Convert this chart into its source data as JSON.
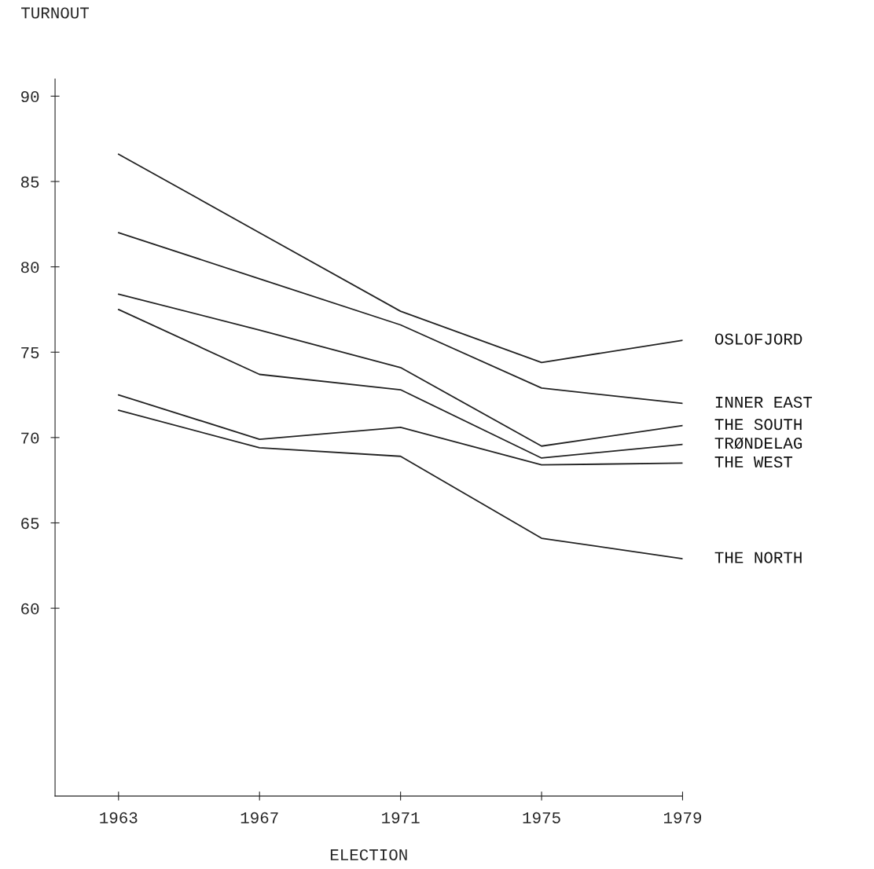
{
  "chart_data": {
    "type": "line",
    "xlabel": "ELECTION",
    "ylabel": "TURNOUT",
    "x": [
      1963,
      1967,
      1971,
      1975,
      1979
    ],
    "series": [
      {
        "name": "OSLOFJORD",
        "color": "#222222",
        "values": [
          86.6,
          82.0,
          77.4,
          74.4,
          75.7
        ]
      },
      {
        "name": "INNER EAST",
        "color": "#222222",
        "values": [
          82.0,
          79.3,
          76.6,
          72.9,
          72.0
        ]
      },
      {
        "name": "THE SOUTH",
        "color": "#222222",
        "values": [
          78.4,
          76.3,
          74.1,
          69.5,
          70.7
        ]
      },
      {
        "name": "TRØNDELAG",
        "color": "#222222",
        "values": [
          77.5,
          73.7,
          72.8,
          68.8,
          69.6
        ]
      },
      {
        "name": "THE WEST",
        "color": "#222222",
        "values": [
          72.5,
          69.9,
          70.6,
          68.4,
          68.5
        ]
      },
      {
        "name": "THE NORTH",
        "color": "#222222",
        "values": [
          71.6,
          69.4,
          68.9,
          64.1,
          62.9
        ]
      }
    ],
    "xlim": [
      1961.2,
      1979
    ],
    "ylim": [
      49,
      91
    ],
    "xticks": [
      1963,
      1967,
      1971,
      1975,
      1979
    ],
    "yticks": [
      60,
      65,
      70,
      75,
      80,
      85,
      90
    ],
    "grid": false,
    "legend": false,
    "marker": "none",
    "line_style": "solid"
  }
}
